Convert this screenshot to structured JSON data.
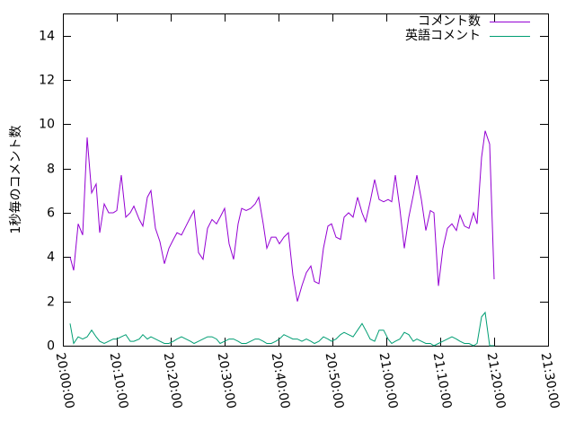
{
  "chart_data": {
    "type": "line",
    "ylabel": "1秒毎のコメント数",
    "legend": "top-right",
    "xlim": [
      "20:00:00",
      "21:30:00"
    ],
    "xticks": [
      "20:00:00",
      "20:10:00",
      "20:20:00",
      "20:30:00",
      "20:40:00",
      "20:50:00",
      "21:00:00",
      "21:10:00",
      "21:20:00",
      "21:30:00"
    ],
    "ylim": [
      0,
      15
    ],
    "yticks": [
      0,
      2,
      4,
      6,
      8,
      10,
      12,
      14
    ],
    "x": [
      "20:01:20",
      "20:02:00",
      "20:02:50",
      "20:03:40",
      "20:04:30",
      "20:05:20",
      "20:06:10",
      "20:06:50",
      "20:07:40",
      "20:08:30",
      "20:09:20",
      "20:10:00",
      "20:10:50",
      "20:11:40",
      "20:12:30",
      "20:13:10",
      "20:14:10",
      "20:14:50",
      "20:15:40",
      "20:16:20",
      "20:17:10",
      "20:18:00",
      "20:18:50",
      "20:19:40",
      "20:20:30",
      "20:21:10",
      "20:22:00",
      "20:22:50",
      "20:23:40",
      "20:24:20",
      "20:25:10",
      "20:26:00",
      "20:26:50",
      "20:27:40",
      "20:28:30",
      "20:29:10",
      "20:30:00",
      "20:30:50",
      "20:31:40",
      "20:32:30",
      "20:33:10",
      "20:34:00",
      "20:34:50",
      "20:35:40",
      "20:36:20",
      "20:37:10",
      "20:37:50",
      "20:38:40",
      "20:39:30",
      "20:40:10",
      "20:41:00",
      "20:41:50",
      "20:42:40",
      "20:43:30",
      "20:44:20",
      "20:45:10",
      "20:46:00",
      "20:46:40",
      "20:47:30",
      "20:48:20",
      "20:49:10",
      "20:49:50",
      "20:50:40",
      "20:51:30",
      "20:52:10",
      "20:53:00",
      "20:53:50",
      "20:54:40",
      "20:55:30",
      "20:56:10",
      "20:57:00",
      "20:57:50",
      "20:58:40",
      "20:59:30",
      "21:00:20",
      "21:01:00",
      "21:01:40",
      "21:02:30",
      "21:03:20",
      "21:04:10",
      "21:05:00",
      "21:05:40",
      "21:06:30",
      "21:07:20",
      "21:08:10",
      "21:08:50",
      "21:09:40",
      "21:10:30",
      "21:11:20",
      "21:12:10",
      "21:13:00",
      "21:13:40",
      "21:14:30",
      "21:15:20",
      "21:16:10",
      "21:16:50",
      "21:17:40",
      "21:18:20",
      "21:19:10",
      "21:20:00"
    ],
    "series": [
      {
        "name": "コメント数",
        "color": "#9400d3",
        "values": [
          4.0,
          3.4,
          5.5,
          5.0,
          9.4,
          6.9,
          7.3,
          5.1,
          6.4,
          6.0,
          6.0,
          6.1,
          7.7,
          5.8,
          6.0,
          6.3,
          5.7,
          5.4,
          6.7,
          7.0,
          5.3,
          4.7,
          3.7,
          4.4,
          4.8,
          5.1,
          5.0,
          5.4,
          5.8,
          6.1,
          4.2,
          3.9,
          5.3,
          5.7,
          5.5,
          5.8,
          6.2,
          4.6,
          3.9,
          5.5,
          6.2,
          6.1,
          6.2,
          6.4,
          6.7,
          5.5,
          4.4,
          4.9,
          4.9,
          4.6,
          4.9,
          5.1,
          3.2,
          2.0,
          2.7,
          3.3,
          3.6,
          2.9,
          2.8,
          4.4,
          5.4,
          5.5,
          4.9,
          4.8,
          5.8,
          6.0,
          5.8,
          6.7,
          6.0,
          5.6,
          6.5,
          7.5,
          6.6,
          6.5,
          6.6,
          6.5,
          7.7,
          6.2,
          4.4,
          5.8,
          6.8,
          7.7,
          6.6,
          5.2,
          6.1,
          6.0,
          2.7,
          4.4,
          5.3,
          5.5,
          5.2,
          5.9,
          5.4,
          5.3,
          6.0,
          5.5,
          8.5,
          9.7,
          9.1,
          3.0
        ]
      },
      {
        "name": "英語コメント",
        "color": "#009e73",
        "values": [
          1.0,
          0.1,
          0.4,
          0.3,
          0.4,
          0.7,
          0.4,
          0.2,
          0.1,
          0.2,
          0.3,
          0.3,
          0.4,
          0.5,
          0.2,
          0.2,
          0.3,
          0.5,
          0.3,
          0.4,
          0.3,
          0.2,
          0.1,
          0.1,
          0.2,
          0.3,
          0.4,
          0.3,
          0.2,
          0.1,
          0.2,
          0.3,
          0.4,
          0.4,
          0.3,
          0.1,
          0.2,
          0.3,
          0.3,
          0.2,
          0.1,
          0.1,
          0.2,
          0.3,
          0.3,
          0.2,
          0.1,
          0.1,
          0.2,
          0.3,
          0.5,
          0.4,
          0.3,
          0.3,
          0.2,
          0.3,
          0.2,
          0.1,
          0.2,
          0.4,
          0.3,
          0.2,
          0.3,
          0.5,
          0.6,
          0.5,
          0.4,
          0.7,
          1.0,
          0.7,
          0.3,
          0.2,
          0.7,
          0.7,
          0.3,
          0.1,
          0.2,
          0.3,
          0.6,
          0.5,
          0.2,
          0.3,
          0.2,
          0.1,
          0.1,
          0.0,
          0.1,
          0.2,
          0.3,
          0.4,
          0.3,
          0.2,
          0.1,
          0.1,
          0.0,
          0.1,
          1.3,
          1.5,
          0.0,
          0.0
        ]
      }
    ]
  }
}
